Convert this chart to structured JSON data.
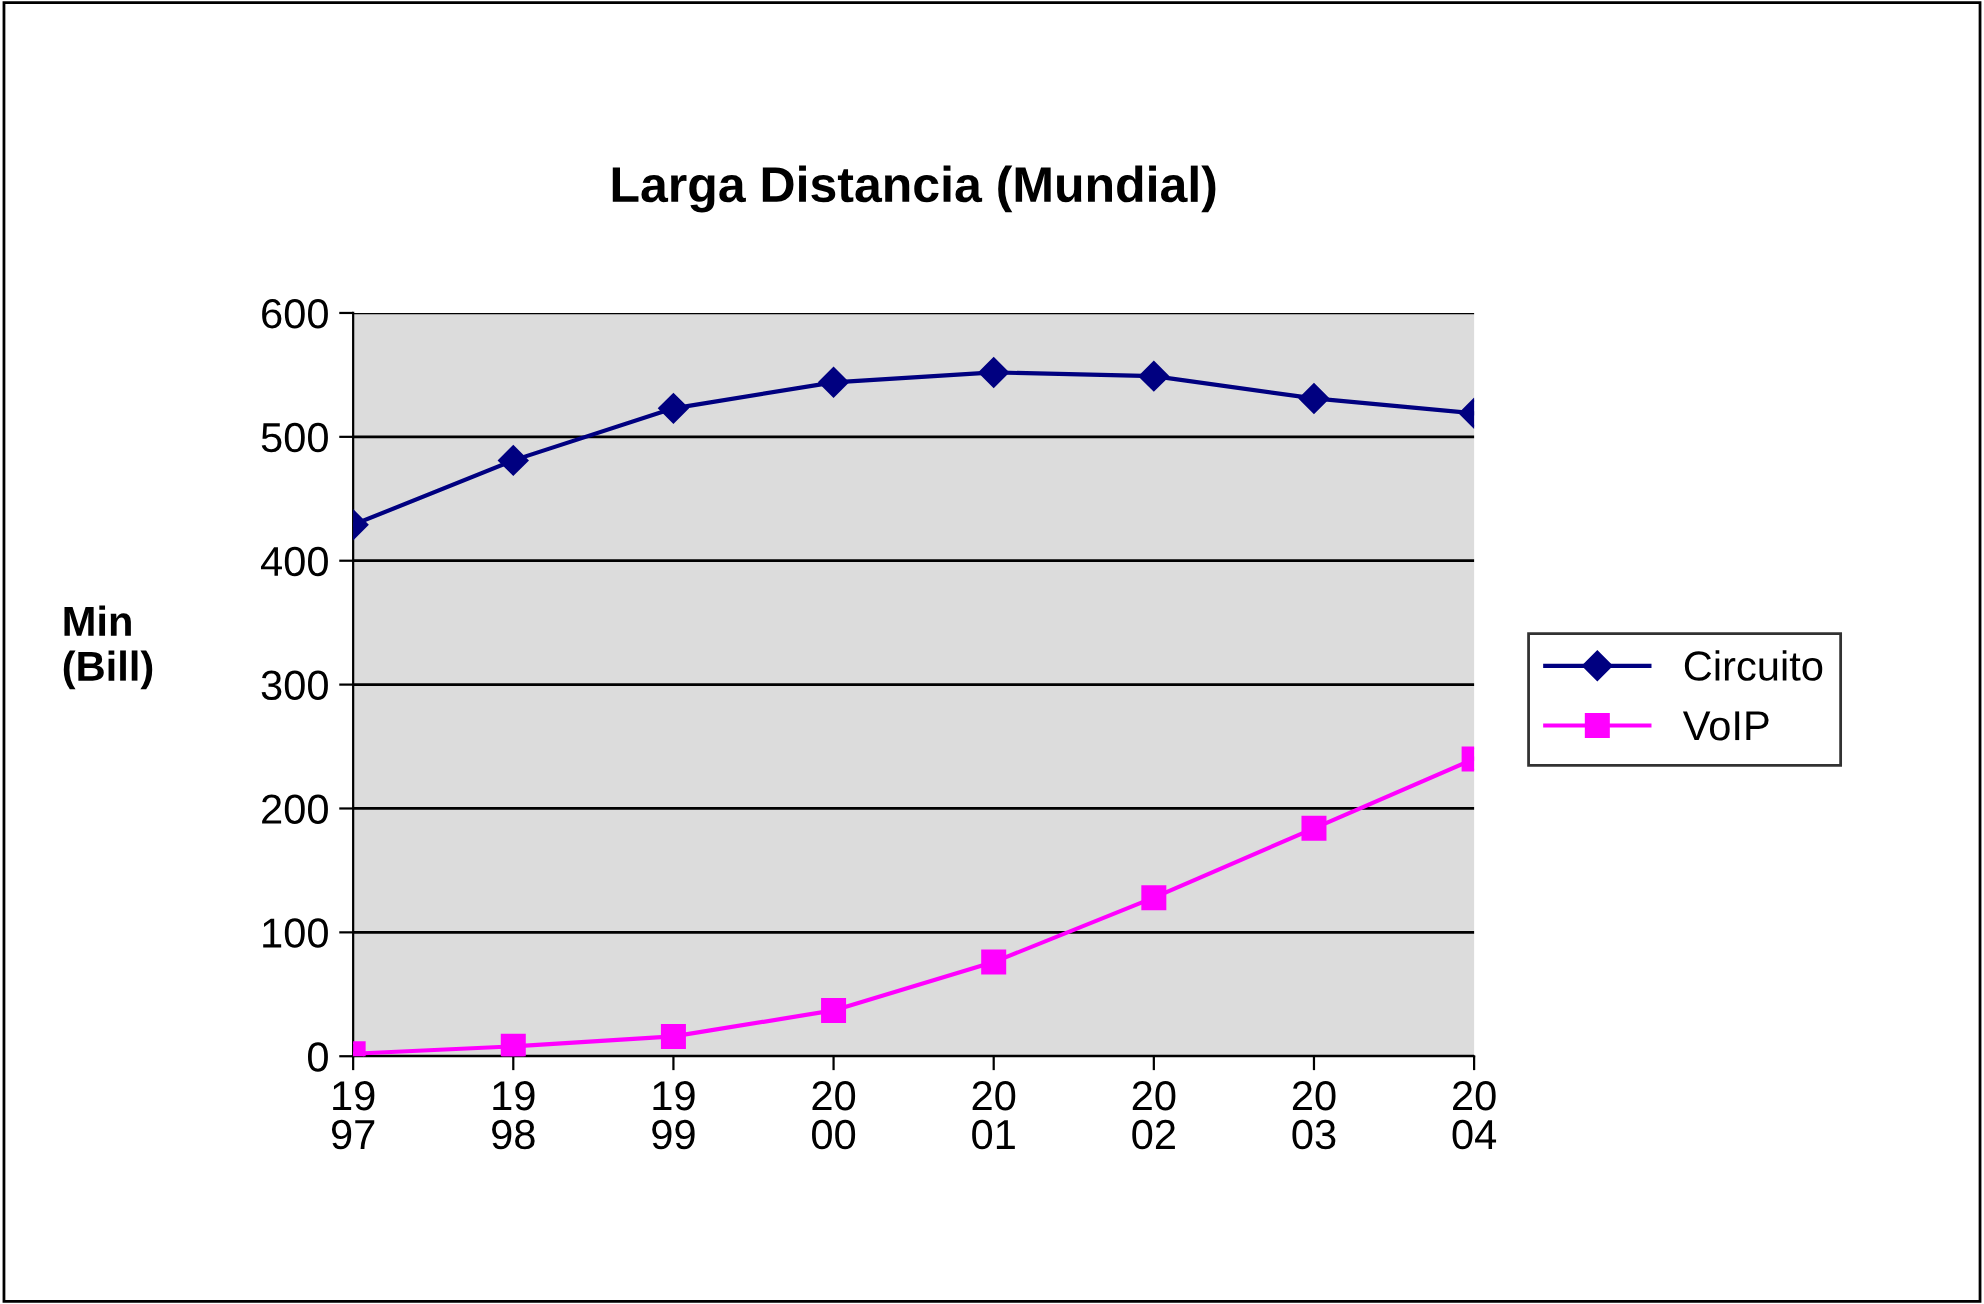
{
  "chart_data": {
    "type": "line",
    "title": "Larga Distancia (Mundial)",
    "ylabel": "Min\n(Bill)",
    "categories": [
      "19\n97",
      "19\n98",
      "19\n99",
      "20\n00",
      "20\n01",
      "20\n02",
      "20\n03",
      "20\n04"
    ],
    "series": [
      {
        "name": "Circuito",
        "color": "#000080",
        "marker": "diamond",
        "values": [
          429,
          481,
          523,
          544,
          552,
          549,
          531,
          519
        ]
      },
      {
        "name": "VoIP",
        "color": "#ff00ff",
        "marker": "square",
        "values": [
          2,
          8,
          16,
          37,
          76,
          128,
          184,
          240
        ]
      }
    ],
    "ylim": [
      0,
      600
    ],
    "yticks": [
      0,
      100,
      200,
      300,
      400,
      500,
      600
    ],
    "grid": "y",
    "legend": "right"
  }
}
